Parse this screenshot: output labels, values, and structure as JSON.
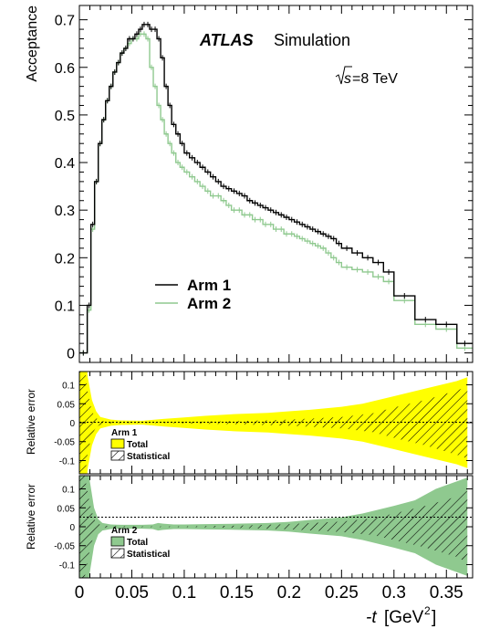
{
  "chart_data": {
    "type": "line",
    "branding": {
      "experiment": "ATLAS",
      "tag": "Simulation",
      "energy_label": "=8 TeV"
    },
    "xlabel": "-t [GeV²]",
    "xlim": [
      0,
      0.375
    ],
    "x_ticks": [
      "0",
      "0.05",
      "0.1",
      "0.15",
      "0.2",
      "0.25",
      "0.3",
      "0.35"
    ],
    "colors": {
      "arm1": "#000000",
      "arm2": "#8fc98f",
      "yellow_band": "#ffff00",
      "green_band": "#8fc98f"
    },
    "main": {
      "ylabel": "Acceptance",
      "ylim": [
        -0.02,
        0.73
      ],
      "y_ticks": [
        "0",
        "0.1",
        "0.2",
        "0.3",
        "0.4",
        "0.5",
        "0.6",
        "0.7"
      ],
      "bin_edges": [
        0.0,
        0.0075,
        0.011,
        0.0145,
        0.018,
        0.0215,
        0.025,
        0.0285,
        0.032,
        0.0355,
        0.039,
        0.0425,
        0.046,
        0.0495,
        0.053,
        0.0565,
        0.06,
        0.0635,
        0.067,
        0.0705,
        0.074,
        0.0775,
        0.081,
        0.0845,
        0.088,
        0.092,
        0.096,
        0.1,
        0.105,
        0.11,
        0.115,
        0.12,
        0.125,
        0.13,
        0.135,
        0.14,
        0.145,
        0.15,
        0.155,
        0.16,
        0.165,
        0.17,
        0.175,
        0.18,
        0.185,
        0.19,
        0.195,
        0.2,
        0.205,
        0.21,
        0.215,
        0.22,
        0.225,
        0.23,
        0.235,
        0.24,
        0.245,
        0.25,
        0.26,
        0.27,
        0.28,
        0.29,
        0.3,
        0.32,
        0.34,
        0.36,
        0.375
      ],
      "series": [
        {
          "name": "Arm 1",
          "values": [
            0.0,
            0.1,
            0.27,
            0.36,
            0.44,
            0.49,
            0.53,
            0.56,
            0.59,
            0.61,
            0.63,
            0.64,
            0.66,
            0.66,
            0.67,
            0.68,
            0.69,
            0.69,
            0.68,
            0.68,
            0.66,
            0.62,
            0.56,
            0.52,
            0.48,
            0.46,
            0.44,
            0.42,
            0.41,
            0.4,
            0.39,
            0.38,
            0.37,
            0.36,
            0.35,
            0.345,
            0.34,
            0.335,
            0.33,
            0.32,
            0.315,
            0.31,
            0.305,
            0.3,
            0.295,
            0.29,
            0.285,
            0.28,
            0.275,
            0.27,
            0.265,
            0.26,
            0.255,
            0.25,
            0.245,
            0.24,
            0.23,
            0.22,
            0.21,
            0.2,
            0.19,
            0.17,
            0.12,
            0.07,
            0.06,
            0.02
          ]
        },
        {
          "name": "Arm 2",
          "values": [
            0.0,
            0.09,
            0.26,
            0.36,
            0.44,
            0.49,
            0.53,
            0.56,
            0.59,
            0.61,
            0.63,
            0.64,
            0.65,
            0.66,
            0.66,
            0.67,
            0.67,
            0.66,
            0.6,
            0.56,
            0.52,
            0.49,
            0.46,
            0.44,
            0.42,
            0.4,
            0.39,
            0.38,
            0.37,
            0.36,
            0.35,
            0.34,
            0.33,
            0.33,
            0.32,
            0.31,
            0.3,
            0.3,
            0.29,
            0.29,
            0.28,
            0.28,
            0.27,
            0.27,
            0.26,
            0.26,
            0.25,
            0.25,
            0.245,
            0.24,
            0.235,
            0.23,
            0.225,
            0.22,
            0.21,
            0.2,
            0.19,
            0.18,
            0.175,
            0.17,
            0.16,
            0.15,
            0.11,
            0.06,
            0.05,
            0.01
          ]
        }
      ]
    },
    "ratio_panels": [
      {
        "ylabel": "Relative error",
        "ylim": [
          -0.135,
          0.135
        ],
        "y_ticks": [
          "0.1",
          "0.05",
          "0",
          "-0.05",
          "-0.1"
        ],
        "legend_title": "Arm 1",
        "legend_items": [
          "Total",
          "Statistical"
        ],
        "total_band": {
          "x": [
            0.0,
            0.005,
            0.008,
            0.012,
            0.016,
            0.02,
            0.03,
            0.04,
            0.06,
            0.08,
            0.1,
            0.12,
            0.15,
            0.18,
            0.2,
            0.22,
            0.25,
            0.27,
            0.3,
            0.33,
            0.36,
            0.37
          ],
          "half_width": [
            0.2,
            0.2,
            0.12,
            0.06,
            0.03,
            0.015,
            0.008,
            0.006,
            0.005,
            0.01,
            0.014,
            0.018,
            0.023,
            0.026,
            0.03,
            0.034,
            0.042,
            0.05,
            0.07,
            0.09,
            0.11,
            0.12
          ]
        },
        "stat_band": {
          "x": [
            0.0,
            0.005,
            0.008,
            0.012,
            0.016,
            0.02,
            0.03,
            0.05,
            0.08,
            0.1,
            0.15,
            0.2,
            0.25,
            0.28,
            0.3,
            0.33,
            0.36,
            0.37
          ],
          "half_width": [
            0.2,
            0.15,
            0.08,
            0.03,
            0.012,
            0.005,
            0.002,
            0.001,
            0.001,
            0.002,
            0.004,
            0.008,
            0.015,
            0.025,
            0.04,
            0.06,
            0.085,
            0.095
          ]
        }
      },
      {
        "ylabel": "Relative error",
        "ylim": [
          -0.135,
          0.135
        ],
        "y_ticks": [
          "0.1",
          "0.05",
          "0",
          "-0.05",
          "-0.1"
        ],
        "legend_title": "Arm 2",
        "legend_items": [
          "Total",
          "Statistical"
        ],
        "total_band": {
          "x": [
            0.0,
            0.006,
            0.01,
            0.014,
            0.018,
            0.022,
            0.03,
            0.04,
            0.06,
            0.07,
            0.075,
            0.08,
            0.09,
            0.1,
            0.12,
            0.15,
            0.18,
            0.2,
            0.22,
            0.25,
            0.27,
            0.3,
            0.32,
            0.34,
            0.36,
            0.37
          ],
          "half_width": [
            0.2,
            0.2,
            0.12,
            0.05,
            0.02,
            0.01,
            0.006,
            0.005,
            0.005,
            0.006,
            0.01,
            0.008,
            0.006,
            0.006,
            0.007,
            0.008,
            0.01,
            0.013,
            0.018,
            0.025,
            0.035,
            0.055,
            0.07,
            0.1,
            0.12,
            0.13
          ]
        },
        "stat_band": {
          "x": [
            0.0,
            0.006,
            0.01,
            0.014,
            0.018,
            0.022,
            0.03,
            0.05,
            0.1,
            0.15,
            0.2,
            0.25,
            0.28,
            0.3,
            0.33,
            0.36,
            0.37
          ],
          "half_width": [
            0.2,
            0.12,
            0.06,
            0.02,
            0.008,
            0.003,
            0.002,
            0.001,
            0.001,
            0.003,
            0.007,
            0.014,
            0.022,
            0.035,
            0.055,
            0.08,
            0.095
          ]
        }
      }
    ]
  }
}
